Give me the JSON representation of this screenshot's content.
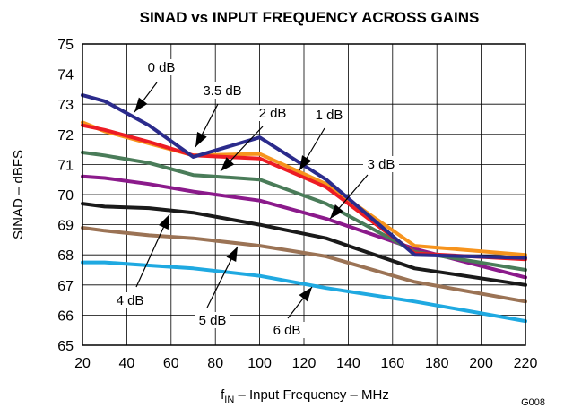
{
  "chart_data": {
    "type": "line",
    "title": "SINAD vs INPUT FREQUENCY ACROSS GAINS",
    "ylabel": "SINAD – dBFS",
    "xlabel": {
      "prefix": "f",
      "sub": "IN",
      "suffix": " – Input Frequency – MHz"
    },
    "figure_id": "G008",
    "xlim": [
      20,
      220
    ],
    "ylim": [
      65,
      75
    ],
    "xticks": [
      "20",
      "40",
      "60",
      "80",
      "100",
      "120",
      "140",
      "160",
      "180",
      "200",
      "220"
    ],
    "yticks": [
      "65",
      "66",
      "67",
      "68",
      "69",
      "70",
      "71",
      "72",
      "73",
      "74",
      "75"
    ],
    "grid": true,
    "x": [
      20,
      30,
      50,
      70,
      100,
      130,
      170,
      220
    ],
    "series": [
      {
        "name": "0 dB",
        "color": "#2b2b8c",
        "values": [
          73.3,
          73.1,
          72.3,
          71.25,
          71.9,
          70.5,
          68.0,
          67.9
        ]
      },
      {
        "name": "3.5 dB",
        "color": "#f7941d",
        "values": [
          72.4,
          72.1,
          71.7,
          71.3,
          71.35,
          70.35,
          68.3,
          68.0
        ]
      },
      {
        "name": "1 dB",
        "color": "#ed1c24",
        "values": [
          72.3,
          72.15,
          71.75,
          71.3,
          71.2,
          70.25,
          68.05,
          67.85
        ]
      },
      {
        "name": "2 dB",
        "color": "#4a7c59",
        "values": [
          71.4,
          71.3,
          71.05,
          70.65,
          70.5,
          69.7,
          68.1,
          67.5
        ]
      },
      {
        "name": "3 dB",
        "color": "#8b1a8b",
        "values": [
          70.6,
          70.55,
          70.35,
          70.1,
          69.8,
          69.2,
          68.2,
          67.25
        ]
      },
      {
        "name": "4 dB",
        "color": "#1a1a1a",
        "values": [
          69.7,
          69.6,
          69.55,
          69.4,
          69.0,
          68.55,
          67.55,
          67.0
        ]
      },
      {
        "name": "5 dB",
        "color": "#9b7355",
        "values": [
          68.9,
          68.8,
          68.65,
          68.55,
          68.3,
          67.95,
          67.1,
          66.45
        ]
      },
      {
        "name": "6 dB",
        "color": "#1fa9e1",
        "values": [
          67.75,
          67.75,
          67.65,
          67.55,
          67.3,
          66.9,
          66.45,
          65.8
        ]
      }
    ],
    "annotations": [
      {
        "series": "0 dB",
        "label": "0 dB"
      },
      {
        "series": "3.5 dB",
        "label": "3.5 dB"
      },
      {
        "series": "2 dB",
        "label": "2 dB"
      },
      {
        "series": "1 dB",
        "label": "1 dB"
      },
      {
        "series": "3 dB",
        "label": "3 dB"
      },
      {
        "series": "4 dB",
        "label": "4 dB"
      },
      {
        "series": "5 dB",
        "label": "5 dB"
      },
      {
        "series": "6 dB",
        "label": "6 dB"
      }
    ]
  }
}
